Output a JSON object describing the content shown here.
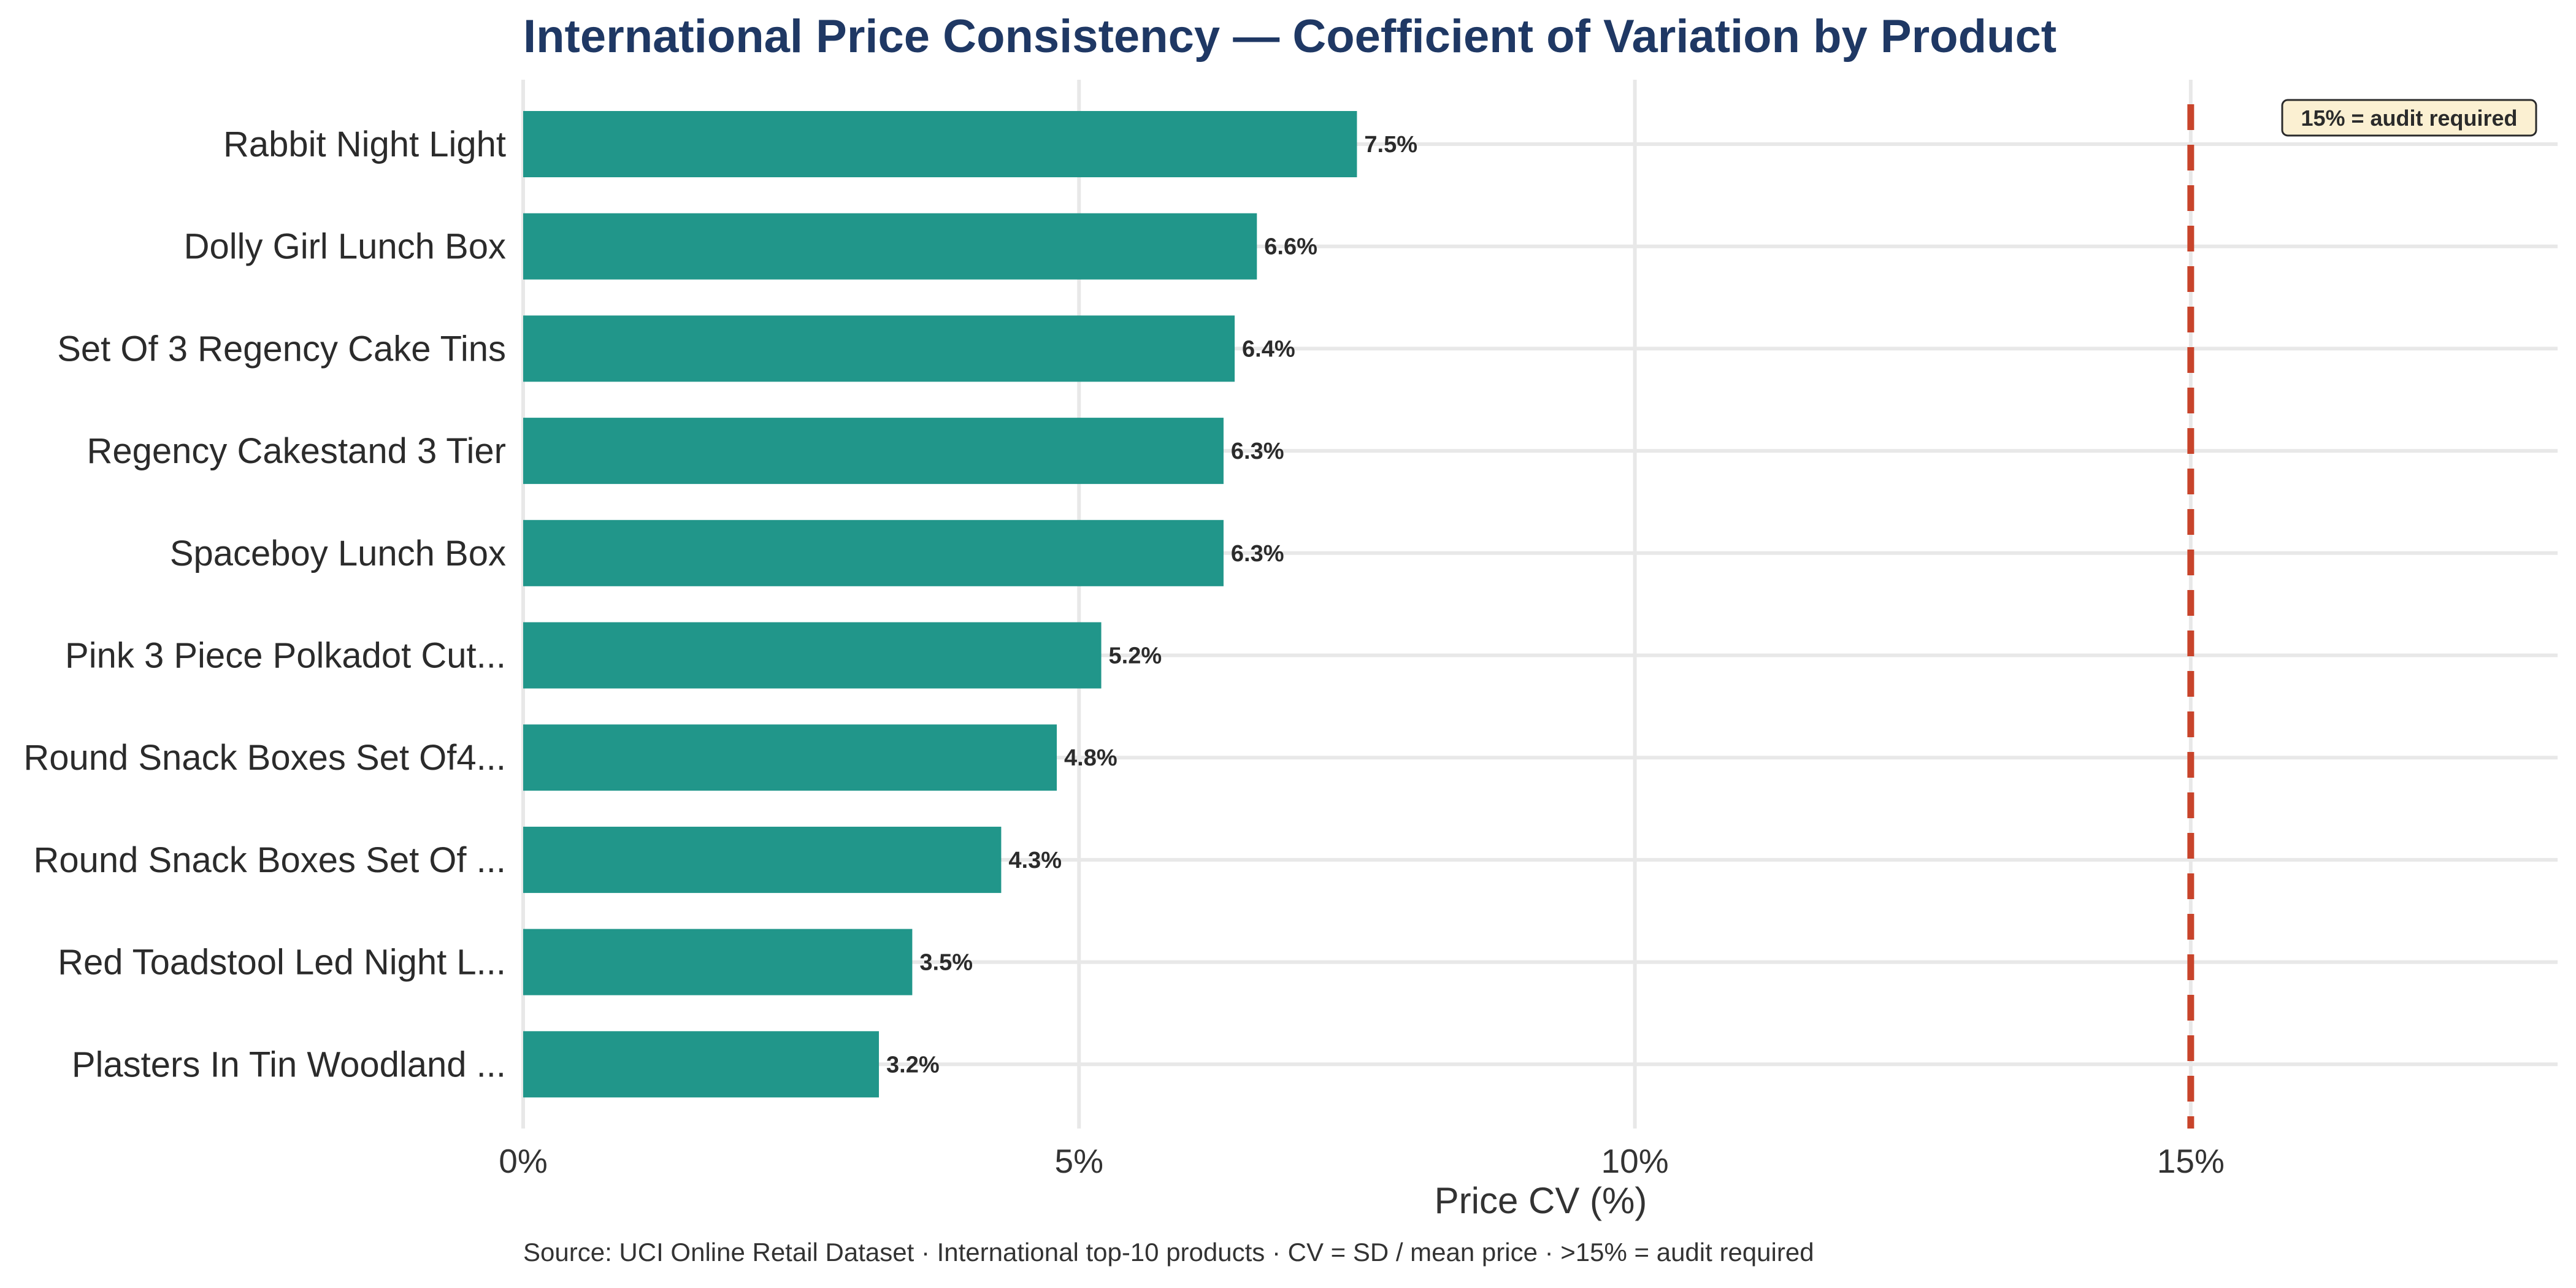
{
  "chart_data": {
    "type": "bar",
    "orientation": "horizontal",
    "title": "International Price Consistency — Coefficient of Variation by Product",
    "xlabel": "Price CV (%)",
    "ylabel": "",
    "categories": [
      "Rabbit Night Light",
      "Dolly Girl Lunch Box",
      "Set Of 3 Regency Cake Tins",
      "Regency Cakestand 3 Tier",
      "Spaceboy Lunch Box",
      "Pink 3 Piece Polkadot Cut...",
      "Round Snack Boxes Set Of4...",
      "Round Snack Boxes Set Of ...",
      "Red Toadstool Led Night L...",
      "Plasters In Tin Woodland ..."
    ],
    "values": [
      7.5,
      6.6,
      6.4,
      6.3,
      6.3,
      5.2,
      4.8,
      4.3,
      3.5,
      3.2
    ],
    "value_labels": [
      "7.5%",
      "6.6%",
      "6.4%",
      "6.3%",
      "6.3%",
      "5.2%",
      "4.8%",
      "4.3%",
      "3.5%",
      "3.2%"
    ],
    "xlim": [
      0,
      18.3
    ],
    "xticks": [
      0,
      5,
      10,
      15
    ],
    "xtick_labels": [
      "0%",
      "5%",
      "10%",
      "15%"
    ],
    "grid": true,
    "reference_line": {
      "value": 15,
      "style": "dashed",
      "label": "15% = audit required"
    },
    "colors": {
      "bar": "#21968a",
      "reference": "#c8442b",
      "grid": "#e8e8e8",
      "title": "#1f3864",
      "annotation_fill": "#fbf0d2"
    }
  },
  "source_note": "Source: UCI Online Retail Dataset · International top-10 products · CV = SD / mean price · >15% = audit required"
}
